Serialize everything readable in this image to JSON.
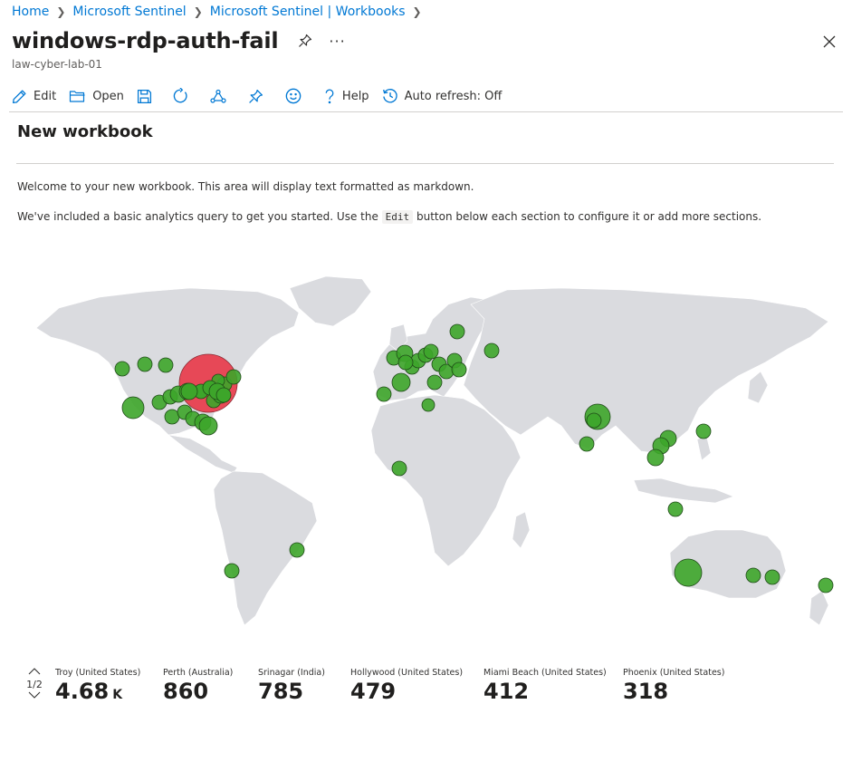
{
  "breadcrumb": [
    "Home",
    "Microsoft Sentinel",
    "Microsoft Sentinel | Workbooks"
  ],
  "header": {
    "title": "windows-rdp-auth-fail",
    "subtitle": "law-cyber-lab-01",
    "ellipsis": "···"
  },
  "toolbar": {
    "edit": "Edit",
    "open": "Open",
    "help": "Help",
    "auto_refresh": "Auto refresh: Off",
    "icons": [
      "pencil-icon",
      "folder-open-icon",
      "save-icon",
      "refresh-icon",
      "share-icon",
      "pin-icon",
      "smiley-icon",
      "help-icon",
      "clock-refresh-icon"
    ]
  },
  "workbook": {
    "section_title": "New workbook",
    "para1": "Welcome to your new workbook. This area will display text formatted as markdown.",
    "para2_before": "We've included a basic analytics query to get you started. Use the",
    "para2_code": "Edit",
    "para2_after": "button below each section to configure it or add more sections."
  },
  "colors": {
    "accent": "#0078d4",
    "bubble_green": "#3da52a",
    "bubble_red": "#e8404f",
    "land": "#dadbdf"
  },
  "tiles": {
    "page": "1/2",
    "items": [
      {
        "label": "Troy (United States)",
        "value": "4.68",
        "unit": "K"
      },
      {
        "label": "Perth (Australia)",
        "value": "860",
        "unit": ""
      },
      {
        "label": "Srinagar (India)",
        "value": "785",
        "unit": ""
      },
      {
        "label": "Hollywood (United States)",
        "value": "479",
        "unit": ""
      },
      {
        "label": "Miami Beach (United States)",
        "value": "412",
        "unit": ""
      },
      {
        "label": "Phoenix (United States)",
        "value": "318",
        "unit": ""
      }
    ]
  }
}
